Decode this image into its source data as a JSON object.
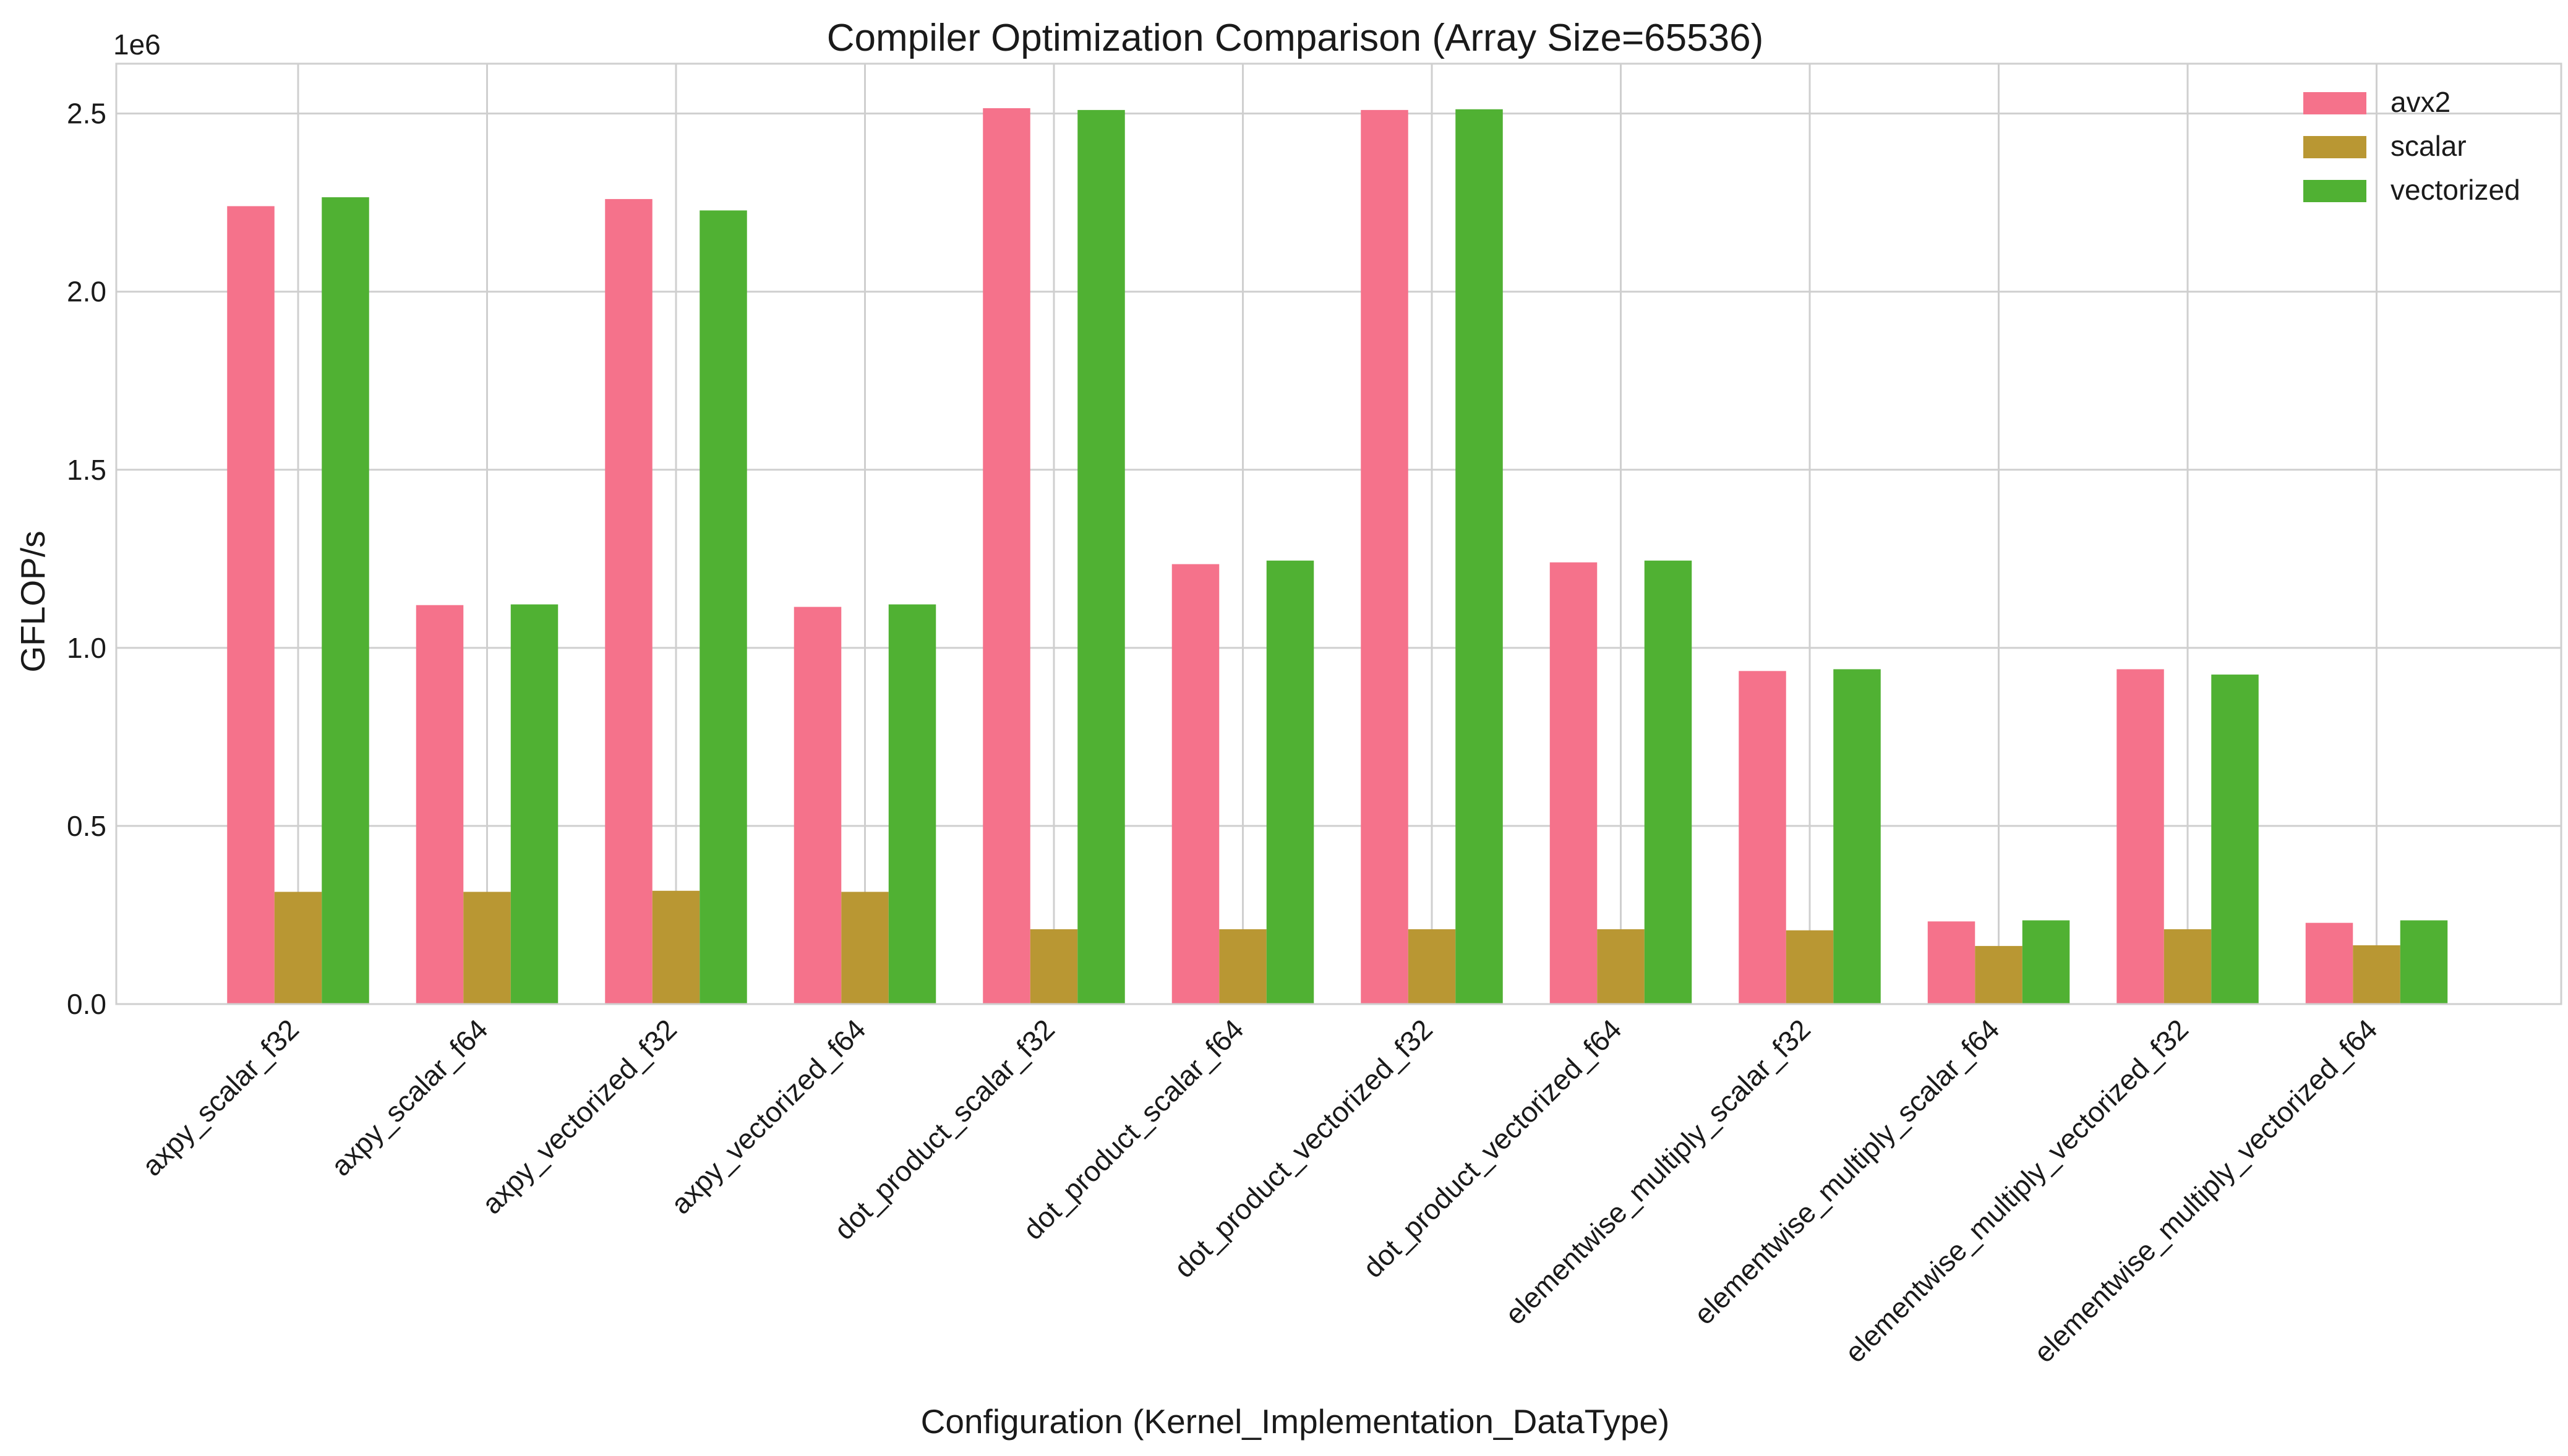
{
  "chart_data": {
    "type": "bar",
    "title": "Compiler Optimization Comparison (Array Size=65536)",
    "xlabel": "Configuration (Kernel_Implementation_DataType)",
    "ylabel": "GFLOP/s",
    "y_offset_label": "1e6",
    "y_scale": 1000000,
    "ylim": [
      0,
      2640000
    ],
    "yticks": [
      0,
      500000,
      1000000,
      1500000,
      2000000,
      2500000
    ],
    "ytick_labels": [
      "0.0",
      "0.5",
      "1.0",
      "1.5",
      "2.0",
      "2.5"
    ],
    "grid": true,
    "legend_position": "top-right",
    "categories": [
      "axpy_scalar_f32",
      "axpy_scalar_f64",
      "axpy_vectorized_f32",
      "axpy_vectorized_f64",
      "dot_product_scalar_f32",
      "dot_product_scalar_f64",
      "dot_product_vectorized_f32",
      "dot_product_vectorized_f64",
      "elementwise_multiply_scalar_f32",
      "elementwise_multiply_scalar_f64",
      "elementwise_multiply_vectorized_f32",
      "elementwise_multiply_vectorized_f64"
    ],
    "series": [
      {
        "name": "avx2",
        "color": "#f5728b",
        "values": [
          2240000,
          1120000,
          2260000,
          1115000,
          2515000,
          1235000,
          2510000,
          1240000,
          935000,
          232000,
          940000,
          228000
        ]
      },
      {
        "name": "scalar",
        "color": "#b99733",
        "values": [
          315000,
          315000,
          318000,
          315000,
          210000,
          210000,
          210000,
          210000,
          207000,
          163000,
          210000,
          165000
        ]
      },
      {
        "name": "vectorized",
        "color": "#50b133",
        "values": [
          2265000,
          1122000,
          2228000,
          1122000,
          2510000,
          1245000,
          2512000,
          1245000,
          940000,
          235000,
          925000,
          235000
        ]
      }
    ]
  }
}
